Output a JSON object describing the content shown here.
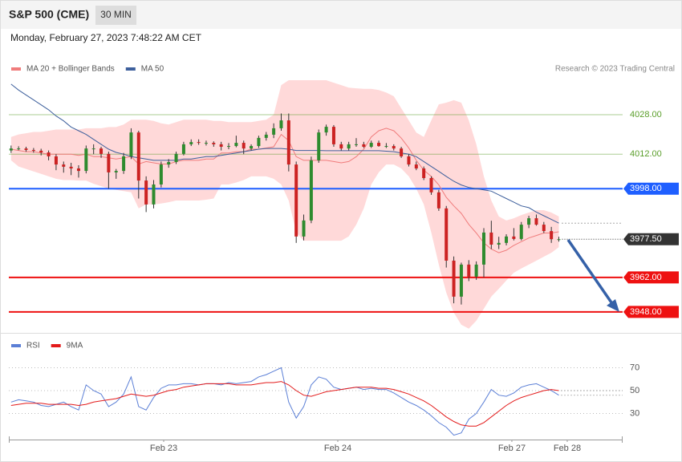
{
  "header": {
    "title": "S&P 500 (CME)",
    "interval": "30 MIN",
    "timestamp": "Monday, February 27, 2023 7:48:22 AM CET"
  },
  "chart_data": [
    {
      "type": "candlestick",
      "credit": "Research © 2023 Trading Central",
      "up_color": "#2e8b2e",
      "down_color": "#cc2222",
      "xlim": [
        -0.3,
        81.5
      ],
      "ylim": [
        3939.5,
        4042
      ],
      "candles": [
        [
          4013.5,
          4015.5,
          4012.5,
          4014.3
        ],
        [
          4014.3,
          4015.2,
          4013.6,
          4014.3
        ],
        [
          4014.3,
          4015,
          4013,
          4013.7
        ],
        [
          4013.7,
          4014.5,
          4012.6,
          4013.4
        ],
        [
          4013.4,
          4014.2,
          4011.5,
          4012.7
        ],
        [
          4012.7,
          4013.5,
          4009.5,
          4011.1
        ],
        [
          4011.1,
          4012,
          4005.5,
          4007.8
        ],
        [
          4007.8,
          4009,
          4004.5,
          4006.9
        ],
        [
          4006.9,
          4008.5,
          4003.5,
          4006.2
        ],
        [
          4006.2,
          4007.5,
          4002.5,
          4005.2
        ],
        [
          4005.2,
          4015.5,
          4004.2,
          4014.3
        ],
        [
          4014.3,
          4016,
          4012,
          4014.3
        ],
        [
          4014.3,
          4015,
          4010.5,
          4012.1
        ],
        [
          4012.1,
          4013,
          3998,
          4004.6
        ],
        [
          4004.6,
          4006,
          4002,
          4005.2
        ],
        [
          4005.2,
          4012.5,
          4004,
          4011.1
        ],
        [
          4011.1,
          4022.5,
          4010,
          4020.8
        ],
        [
          4020.8,
          4021.5,
          3994,
          4001.3
        ],
        [
          4001.3,
          4003,
          3988.5,
          3991.6
        ],
        [
          3991.6,
          4001.5,
          3990,
          3999.7
        ],
        [
          3999.7,
          4009,
          3998.5,
          4007.8
        ],
        [
          4007.8,
          4010,
          4006.5,
          4008.8
        ],
        [
          4008.8,
          4013,
          4008,
          4012.1
        ],
        [
          4012.1,
          4017,
          4011.5,
          4016
        ],
        [
          4016,
          4018,
          4015.3,
          4016.9
        ],
        [
          4016.9,
          4018,
          4015.8,
          4016.6
        ],
        [
          4016.6,
          4017.5,
          4015.5,
          4016.6
        ],
        [
          4016.6,
          4017.2,
          4015,
          4016
        ],
        [
          4016,
          4017,
          4013.5,
          4015
        ],
        [
          4015,
          4016.5,
          4014,
          4015.3
        ],
        [
          4015.3,
          4019.5,
          4014.8,
          4016.6
        ],
        [
          4016.6,
          4017.5,
          4012,
          4014.3
        ],
        [
          4014.3,
          4016,
          4013.5,
          4015.3
        ],
        [
          4015.3,
          4019.5,
          4014.5,
          4018.6
        ],
        [
          4018.6,
          4021,
          4017.5,
          4019.9
        ],
        [
          4019.9,
          4024.5,
          4018.5,
          4022.5
        ],
        [
          4022.5,
          4028.5,
          4021.5,
          4025.7
        ],
        [
          4025.7,
          4028.5,
          4005,
          4007.8
        ],
        [
          4007.8,
          4009,
          3976,
          3978.6
        ],
        [
          3978.6,
          3987.5,
          3977,
          3985.1
        ],
        [
          3985.1,
          4011,
          3984,
          4009.5
        ],
        [
          4009.5,
          4022,
          4008.5,
          4020.8
        ],
        [
          4020.8,
          4024,
          4019.5,
          4023.1
        ],
        [
          4023.1,
          4023.8,
          4015,
          4016
        ],
        [
          4016,
          4017,
          4013.5,
          4014.3
        ],
        [
          4014.3,
          4017,
          4013.5,
          4016
        ],
        [
          4016,
          4018.5,
          4015,
          4016
        ],
        [
          4016,
          4017,
          4014.5,
          4015
        ],
        [
          4015,
          4017.5,
          4014.5,
          4016.6
        ],
        [
          4016.6,
          4017.5,
          4015,
          4015.3
        ],
        [
          4015.3,
          4016.5,
          4014.5,
          4015.3
        ],
        [
          4015.3,
          4016,
          4013.5,
          4014.3
        ],
        [
          4014.3,
          4015,
          4010.5,
          4011.1
        ],
        [
          4011.1,
          4012,
          4007,
          4007.8
        ],
        [
          4007.8,
          4009,
          4005.5,
          4006.2
        ],
        [
          4006.2,
          4007,
          4001.5,
          4002.3
        ],
        [
          4002.3,
          4003,
          3995.5,
          3996.5
        ],
        [
          3996.5,
          3997.5,
          3989,
          3990
        ],
        [
          3990,
          3991,
          3966,
          3968.8
        ],
        [
          3968.8,
          3970.5,
          3951.5,
          3954.2
        ],
        [
          3954.2,
          3968,
          3951,
          3967.2
        ],
        [
          3967.2,
          3969,
          3960.5,
          3962.3
        ],
        [
          3962.3,
          3968.5,
          3961,
          3967.2
        ],
        [
          3967.2,
          3982,
          3962,
          3980.2
        ],
        [
          3980.2,
          3985,
          3973.5,
          3975.3
        ],
        [
          3975.3,
          3978.5,
          3973.5,
          3976
        ],
        [
          3976,
          3979.5,
          3975,
          3978.6
        ],
        [
          3978.6,
          3982,
          3977,
          3977.6
        ],
        [
          3977.6,
          3984.5,
          3977,
          3983.4
        ],
        [
          3983.4,
          3987,
          3982,
          3986
        ],
        [
          3986,
          3987.5,
          3983,
          3983.4
        ],
        [
          3983.4,
          3984.5,
          3980,
          3980.8
        ],
        [
          3980.8,
          3982.5,
          3976,
          3977.5
        ],
        [
          3977.5,
          3978.5,
          3976.5,
          3977.5
        ]
      ],
      "series": [
        {
          "name": "MA 20 + Bollinger Bands",
          "color": "#f07c7c",
          "band_color": "#ffd9d9",
          "values": [
            4014,
            4013.5,
            4013,
            4013,
            4012.5,
            4012,
            4012,
            4012,
            4012,
            4011.5,
            4012,
            4011,
            4011,
            4010.5,
            4010,
            4010.5,
            4011,
            4008,
            4009,
            4008.5,
            4008,
            4008,
            4009,
            4009.5,
            4009.5,
            4009.5,
            4010,
            4010,
            4012.5,
            4012.5,
            4013,
            4013,
            4014,
            4014,
            4014.5,
            4015,
            4020,
            4017.5,
            4011,
            4009.5,
            4009.5,
            4009.5,
            4009.5,
            4009,
            4008.5,
            4009,
            4011,
            4014,
            4019,
            4021.5,
            4022.5,
            4021.5,
            4018.5,
            4014.5,
            4009.5,
            4005.5,
            4003,
            3999.5,
            3994.5,
            3991,
            3988,
            3983.5,
            3980,
            3976,
            3973.5,
            3972,
            3973,
            3975,
            3976.5,
            3978,
            3979,
            3980,
            3980,
            3980.5
          ],
          "upper": [
            4019,
            4020,
            4020.5,
            4021,
            4021,
            4021.5,
            4022,
            4022,
            4022,
            4022,
            4022.5,
            4022.5,
            4022.5,
            4023,
            4023,
            4024,
            4026,
            4026,
            4026,
            4025.5,
            4024.5,
            4024,
            4025,
            4026,
            4026,
            4026,
            4026,
            4025.5,
            4025.5,
            4025,
            4025,
            4025,
            4025,
            4025.5,
            4026,
            4028,
            4040,
            4042,
            4042,
            4042,
            4042,
            4042,
            4042,
            4041,
            4040,
            4039,
            4038.7,
            4038.5,
            4038.5,
            4038,
            4037,
            4035.5,
            4030.6,
            4025.7,
            4020.8,
            4019,
            4025.7,
            4032.2,
            4032.9,
            4033.9,
            4032.9,
            4025.7,
            4016,
            4003,
            3993.2,
            3986.7,
            3985.1,
            3986,
            3987.3,
            3988.3,
            3989.3,
            3989.3,
            3988.3,
            3986.7
          ],
          "lower": [
            4009.5,
            4007,
            4006,
            4005,
            4004,
            4003,
            4002,
            4001.5,
            4001.5,
            4001.3,
            4001.3,
            4000,
            3999,
            3998,
            3997.5,
            3997,
            3996.5,
            3990,
            3991.6,
            3991.6,
            3992,
            3992.5,
            3993.2,
            3993.2,
            3993.2,
            3993.2,
            3993.5,
            3994,
            3999.7,
            3999.7,
            4000.5,
            4001.5,
            4003,
            4003,
            4003,
            4002,
            3999.7,
            3993.2,
            3980.2,
            3976.9,
            3976.9,
            3976.9,
            3976.9,
            3976.9,
            3976.9,
            3978.6,
            3983.4,
            3990,
            3999.7,
            4004.6,
            4007.8,
            4007.8,
            4006.2,
            4003,
            3998,
            3991.6,
            3980.2,
            3967.2,
            3955.8,
            3947.7,
            3942.8,
            3941.2,
            3944.4,
            3949.3,
            3954.2,
            3957.4,
            3960.7,
            3963.9,
            3965.6,
            3967.2,
            3968.8,
            3970.4,
            3972,
            3974.3
          ]
        },
        {
          "name": "MA 50",
          "color": "#3d5f9c",
          "values": [
            4040.4,
            4038,
            4036,
            4034,
            4032,
            4030,
            4027.5,
            4025.5,
            4023,
            4021.5,
            4020,
            4018,
            4016,
            4014,
            4012.7,
            4012,
            4011,
            4010.5,
            4010,
            4009.5,
            4009.5,
            4009.5,
            4009.5,
            4010,
            4010,
            4010.5,
            4011,
            4011,
            4011.5,
            4012,
            4012.5,
            4013,
            4013.5,
            4014,
            4014.3,
            4014.3,
            4014.3,
            4014,
            4013.5,
            4013.5,
            4013.5,
            4013.5,
            4013.4,
            4013.4,
            4013.4,
            4013.4,
            4013.4,
            4013.4,
            4013.4,
            4013.4,
            4013.2,
            4013,
            4012.5,
            4012,
            4011,
            4009,
            4007,
            4005,
            4003,
            4001,
            3999.5,
            3998.5,
            3998,
            3997.5,
            3997,
            3995.5,
            3994,
            3992.5,
            3991,
            3990.3,
            3988.5,
            3987,
            3985.5,
            3984
          ]
        }
      ],
      "levels": [
        {
          "value": 4028,
          "label": "4028.00",
          "color": "#5a9e2a",
          "tag": false
        },
        {
          "value": 4012,
          "label": "4012.00",
          "color": "#5a9e2a",
          "tag": false
        },
        {
          "value": 3998,
          "label": "3998.00",
          "color": "#1f5fff",
          "tag": true
        },
        {
          "value": 3962,
          "label": "3962.00",
          "color": "#ee1111",
          "tag": true
        },
        {
          "value": 3948,
          "label": "3948.00",
          "color": "#ee1111",
          "tag": true
        }
      ],
      "last": {
        "value": 3977.5,
        "label": "3977.50",
        "color": "#333333"
      }
    },
    {
      "type": "line",
      "xlim": [
        -0.3,
        81.5
      ],
      "ylim": [
        10,
        90
      ],
      "yticks": [
        30,
        50,
        70
      ],
      "xticks": [
        {
          "value": 20.34,
          "label": "Feb 23"
        },
        {
          "value": 43.54,
          "label": "Feb 24"
        },
        {
          "value": 66.74,
          "label": "Feb 27"
        },
        {
          "value": 74.12,
          "label": "Feb 28"
        }
      ],
      "series": [
        {
          "name": "RSI",
          "color": "#5b7fd6",
          "values": [
            40,
            42,
            41,
            40,
            37,
            36,
            38,
            40,
            36,
            33,
            55,
            50,
            47,
            36,
            40,
            47,
            62,
            36,
            33,
            44,
            52,
            55,
            55,
            56,
            56,
            55,
            56,
            56,
            55,
            57,
            56,
            57,
            58,
            62,
            64,
            67,
            70,
            40,
            26,
            36,
            55,
            62,
            60,
            53,
            51,
            52,
            53,
            51,
            52,
            51,
            51,
            48,
            44,
            40,
            37,
            33,
            28,
            22,
            18,
            11,
            13,
            25,
            30,
            40,
            51,
            46,
            45,
            48,
            53,
            55,
            56,
            53,
            50,
            46
          ]
        },
        {
          "name": "9MA",
          "color": "#e31a1a",
          "values": [
            37,
            38,
            39,
            39,
            39,
            38,
            38,
            38,
            38,
            37,
            38,
            40,
            41,
            42,
            43,
            45,
            47,
            46,
            45,
            46,
            48,
            50,
            51,
            53,
            54,
            55,
            56,
            56,
            56,
            56,
            55,
            55,
            55,
            56,
            57,
            57,
            58,
            55,
            50,
            46,
            45,
            47,
            49,
            50,
            51,
            52,
            53,
            53,
            53,
            52,
            52,
            51,
            49,
            47,
            44,
            41,
            37,
            32,
            27,
            23,
            20,
            19,
            19,
            22,
            27,
            32,
            37,
            41,
            44,
            46,
            48,
            50,
            51,
            50
          ]
        }
      ]
    }
  ]
}
